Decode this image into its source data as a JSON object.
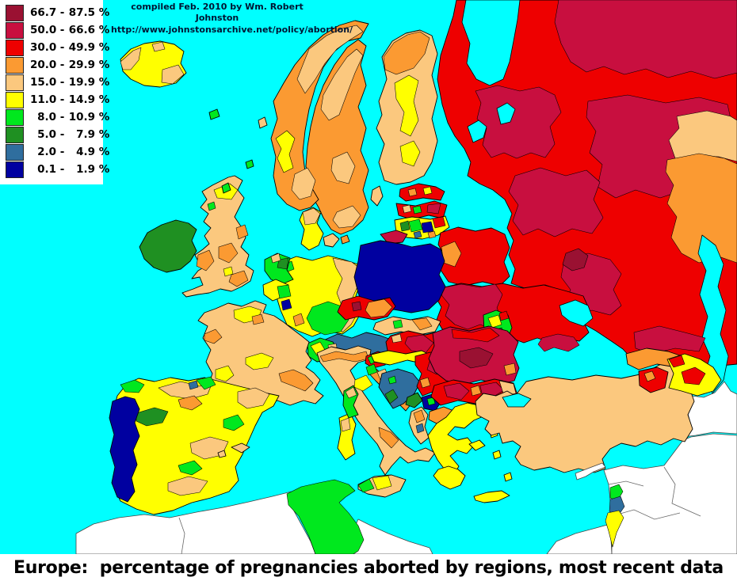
{
  "attribution": {
    "line1": "compiled Feb. 2010 by Wm. Robert Johnston",
    "line2": "http://www.johnstonsarchive.net/policy/abortion/"
  },
  "title": "Europe:  percentage of pregnancies aborted by regions, most recent data",
  "legend": {
    "items": [
      {
        "lo": "66.7",
        "hi": "87.5",
        "suffix": " %",
        "color": "#9A1132"
      },
      {
        "lo": "50.0",
        "hi": "66.6",
        "suffix": " %",
        "color": "#C80F3F"
      },
      {
        "lo": "30.0",
        "hi": "49.9",
        "suffix": " %",
        "color": "#EE0000"
      },
      {
        "lo": "20.0",
        "hi": "29.9",
        "suffix": " %",
        "color": "#FB9A32"
      },
      {
        "lo": "15.0",
        "hi": "19.9",
        "suffix": " %",
        "color": "#FBC87E"
      },
      {
        "lo": "11.0",
        "hi": "14.9",
        "suffix": " %",
        "color": "#FFFF00"
      },
      {
        "lo": "8.0",
        "hi": "10.9",
        "suffix": " %",
        "color": "#00E81E"
      },
      {
        "lo": "5.0",
        "hi": "7.9",
        "suffix": " %",
        "color": "#1F9022"
      },
      {
        "lo": "2.0",
        "hi": "4.9",
        "suffix": " %",
        "color": "#2F6E9E"
      },
      {
        "lo": "0.1",
        "hi": "1.9",
        "suffix": " %",
        "color": "#0000A0"
      }
    ]
  },
  "palette": {
    "maroon": "#9A1132",
    "crimson": "#C80F3F",
    "red": "#EE0000",
    "orange": "#FB9A32",
    "peach": "#FBC87E",
    "yellow": "#FFFF00",
    "green": "#00E81E",
    "dkgreen": "#1F9022",
    "steel": "#2F6E9E",
    "navy": "#0000A0",
    "sea": "#00FFFF",
    "nodata": "#FFFFFF"
  },
  "map": {
    "region_fills": {
      "maghreb-west": "nodata",
      "libya-strip": "nodata",
      "egypt": "nodata",
      "mideast": "nodata",
      "iran": "nodata",
      "cyprus": "nodata",
      "tunisia": "green",
      "russia": "red",
      "russia-cr1": "crimson",
      "russia-cr2": "crimson",
      "russia-cr3": "crimson",
      "russia-cr4": "crimson",
      "russia-cr5": "crimson",
      "russia-maroon": "maroon",
      "kola-crimson": "crimson",
      "caucasus-crimson": "crimson",
      "kazakh-peach": "peach",
      "kazakh-orange": "orange",
      "white-sea": "sea",
      "lake-ladoga": "sea",
      "lake-onega": "sea",
      "caspian-sea": "sea",
      "azov-sea": "sea",
      "marmara-sea": "sea",
      "finland": "peach",
      "finland-lapland": "orange",
      "finland-y1": "yellow",
      "finland-y2": "yellow",
      "sweden": "orange",
      "sweden-p1": "peach",
      "sweden-p2": "peach",
      "sweden-p3": "peach",
      "norway": "orange",
      "norway-p1": "peach",
      "norway-p2": "peach",
      "norway-y1": "yellow",
      "denmark": "yellow",
      "denmark-north": "peach",
      "denmark-isl1": "peach",
      "denmark-isl2": "orange",
      "estonia": "red",
      "estonia-dot1": "orange",
      "estonia-dot2": "yellow",
      "latvia": "red",
      "latvia-cr": "crimson",
      "latvia-green": "green",
      "latvia-peach": "peach",
      "lithuania": "yellow",
      "lith-green": "green",
      "lith-navy": "navy",
      "lith-red": "red",
      "lith-dkgreen": "dkgreen",
      "lith-steel": "steel",
      "lith-orange": "orange",
      "kaliningrad": "crimson",
      "belarus": "red",
      "belarus-orange": "orange",
      "ukraine": "red",
      "ukraine-west": "crimson",
      "crimea": "crimson",
      "moldova": "green",
      "moldova-y": "yellow",
      "moldova-dk": "dkgreen",
      "moldova-red": "red",
      "poland": "navy",
      "germany": "yellow",
      "germany-east": "peach",
      "germany-bavaria": "green",
      "germany-nw-green": "green",
      "germany-orange": "orange",
      "netherlands": "green",
      "netherlands-dk": "dkgreen",
      "netherlands-peach": "peach",
      "belgium": "yellow",
      "belgium-green": "green",
      "benelux-navy-dot": "navy",
      "czech": "red",
      "czech-east": "orange",
      "czech-maroon": "maroon",
      "slovakia": "peach",
      "slovakia-orange": "orange",
      "slovakia-green": "green",
      "austria": "steel",
      "switzerland": "green",
      "swiss-yellow": "yellow",
      "swiss-peach": "peach",
      "hungary": "red",
      "hungary-cr": "crimson",
      "hungary-peach": "peach",
      "france": "peach",
      "france-y1": "yellow",
      "france-y2": "yellow",
      "france-y3": "yellow",
      "france-o1": "orange",
      "france-o2": "orange",
      "france-o3": "orange",
      "spain": "yellow",
      "spain-p1": "peach",
      "spain-p2": "peach",
      "spain-p3": "peach",
      "spain-p4": "peach",
      "spain-g1": "green",
      "spain-g2": "green",
      "spain-g3": "green",
      "spain-g4": "green",
      "spain-dk": "dkgreen",
      "spain-o1": "orange",
      "spain-steel": "steel",
      "balearic-1": "peach",
      "balearic-2": "peach",
      "portugal": "navy",
      "great-britain": "peach",
      "gb-scot-yellow": "yellow",
      "gb-glasgow-green": "green",
      "gb-wales-orange": "orange",
      "gb-midlands-orange": "orange",
      "gb-london-orange": "orange",
      "gb-ne-orange": "orange",
      "gb-yellow-dot": "yellow",
      "ireland": "dkgreen",
      "hebrides": "green",
      "orkney": "green",
      "faroe": "green",
      "shetland": "peach",
      "iceland": "yellow",
      "iceland-w": "peach",
      "iceland-se": "peach",
      "iceland-n": "peach",
      "italy": "peach",
      "italy-po-orange": "orange",
      "italy-yellow": "yellow",
      "italy-naples": "orange",
      "sicily": "peach",
      "sicily-green": "green",
      "sicily-yellow": "yellow",
      "sardinia": "yellow",
      "sardinia-peach": "peach",
      "corsica": "green",
      "corsica-peach": "peach",
      "slovenia": "red",
      "slovenia-green": "green",
      "slovenia-yellow": "yellow",
      "croatia-north": "yellow",
      "croatia-coast": "orange",
      "croatia-coast-peach": "peach",
      "istria": "green",
      "bosnia": "steel",
      "bosnia-dkgreen": "dkgreen",
      "bosnia-green": "green",
      "serbia": "red",
      "serbia-cr": "crimson",
      "serbia-orange": "orange",
      "montenegro": "dkgreen",
      "kosovo": "navy",
      "kosovo-green": "green",
      "macedonia": "orange",
      "albania": "peach",
      "albania-orange": "orange",
      "albania-steel": "steel",
      "romania": "crimson",
      "romania-red": "red",
      "romania-maroon": "maroon",
      "romania-orange": "orange",
      "bulgaria": "red",
      "bulgaria-cr1": "crimson",
      "bulgaria-cr2": "crimson",
      "bulgaria-peach": "peach",
      "bulgaria-orange": "orange",
      "greece": "yellow",
      "peloponnese": "yellow",
      "euboea": "yellow",
      "crete": "yellow",
      "aegean-isl1": "yellow",
      "aegean-isl2": "yellow",
      "rhodes": "yellow",
      "gotland": "peach",
      "turkey": "peach",
      "georgia": "orange",
      "armenia": "red",
      "armenia-orange": "orange",
      "azerbaijan": "yellow",
      "azerbaijan-red1": "red",
      "azerbaijan-red2": "red",
      "israel-north": "green",
      "israel-center": "steel",
      "israel-south": "yellow"
    }
  }
}
